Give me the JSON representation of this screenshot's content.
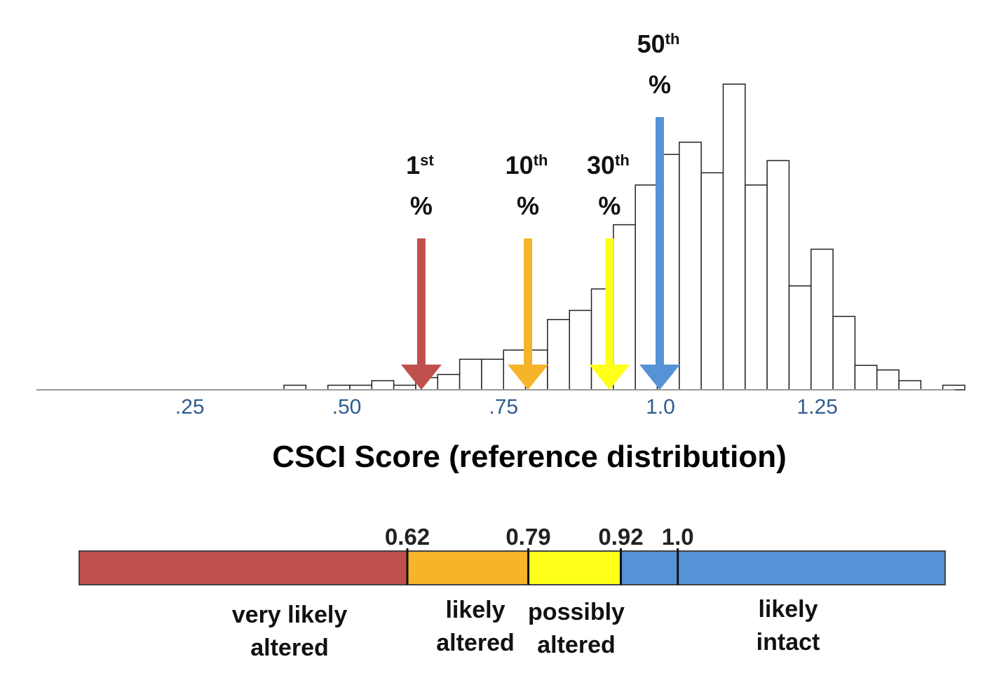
{
  "chart_data": {
    "type": "bar",
    "subtype": "histogram",
    "xlabel": "CSCI Score (reference distribution)",
    "ticks": [
      {
        "value": 0.25,
        "label": ".25"
      },
      {
        "value": 0.5,
        "label": ".50"
      },
      {
        "value": 0.75,
        "label": ".75"
      },
      {
        "value": 1.0,
        "label": "1.0"
      },
      {
        "value": 1.25,
        "label": "1.25"
      }
    ],
    "xlim": [
      0.05,
      1.52
    ],
    "ylim": [
      0,
      100
    ],
    "bin_width": 0.035,
    "bins": [
      {
        "start": 0.4,
        "count": 1.5
      },
      {
        "start": 0.47,
        "count": 1.5
      },
      {
        "start": 0.505,
        "count": 1.5
      },
      {
        "start": 0.54,
        "count": 3
      },
      {
        "start": 0.575,
        "count": 1.5
      },
      {
        "start": 0.61,
        "count": 4
      },
      {
        "start": 0.645,
        "count": 5
      },
      {
        "start": 0.68,
        "count": 10
      },
      {
        "start": 0.715,
        "count": 10
      },
      {
        "start": 0.75,
        "count": 13
      },
      {
        "start": 0.785,
        "count": 13
      },
      {
        "start": 0.82,
        "count": 23
      },
      {
        "start": 0.855,
        "count": 26
      },
      {
        "start": 0.89,
        "count": 33
      },
      {
        "start": 0.925,
        "count": 54
      },
      {
        "start": 0.96,
        "count": 67
      },
      {
        "start": 0.995,
        "count": 77
      },
      {
        "start": 1.03,
        "count": 81
      },
      {
        "start": 1.065,
        "count": 71
      },
      {
        "start": 1.1,
        "count": 100
      },
      {
        "start": 1.135,
        "count": 67
      },
      {
        "start": 1.17,
        "count": 75
      },
      {
        "start": 1.205,
        "count": 34
      },
      {
        "start": 1.24,
        "count": 46
      },
      {
        "start": 1.275,
        "count": 24
      },
      {
        "start": 1.31,
        "count": 8
      },
      {
        "start": 1.345,
        "count": 6.5
      },
      {
        "start": 1.38,
        "count": 3
      },
      {
        "start": 1.45,
        "count": 1.5
      }
    ],
    "percentiles": [
      {
        "num": "1",
        "suffix": "st",
        "sign": "%",
        "value": 0.62,
        "color": "#c0504d"
      },
      {
        "num": "10",
        "suffix": "th",
        "sign": "%",
        "value": 0.79,
        "color": "#f6b42a"
      },
      {
        "num": "30",
        "suffix": "th",
        "sign": "%",
        "value": 0.92,
        "color": "#ffff1a"
      },
      {
        "num": "50",
        "suffix": "th",
        "sign": "%",
        "value": 1.0,
        "color": "#5593d6"
      }
    ],
    "scale_bar": {
      "thresholds": [
        {
          "label": "0.62",
          "value": 0.62
        },
        {
          "label": "0.79",
          "value": 0.79
        },
        {
          "label": "0.92",
          "value": 0.92
        },
        {
          "label": "1.0",
          "value": 1.0
        }
      ],
      "segments": [
        {
          "from": 0,
          "to": 0.62,
          "color": "#c0504d",
          "lines": [
            "very likely",
            "altered"
          ]
        },
        {
          "from": 0.62,
          "to": 0.79,
          "color": "#f6b42a",
          "lines": [
            "likely",
            "altered"
          ]
        },
        {
          "from": 0.79,
          "to": 0.92,
          "color": "#ffff1a",
          "lines": [
            "possibly",
            "altered"
          ]
        },
        {
          "from": 0.92,
          "to": 1.0,
          "color": "#5593d6",
          "lines": []
        },
        {
          "from": 1.0,
          "to": 1.6,
          "color": "#5593d6",
          "lines": [
            "likely",
            "intact"
          ]
        }
      ]
    }
  }
}
